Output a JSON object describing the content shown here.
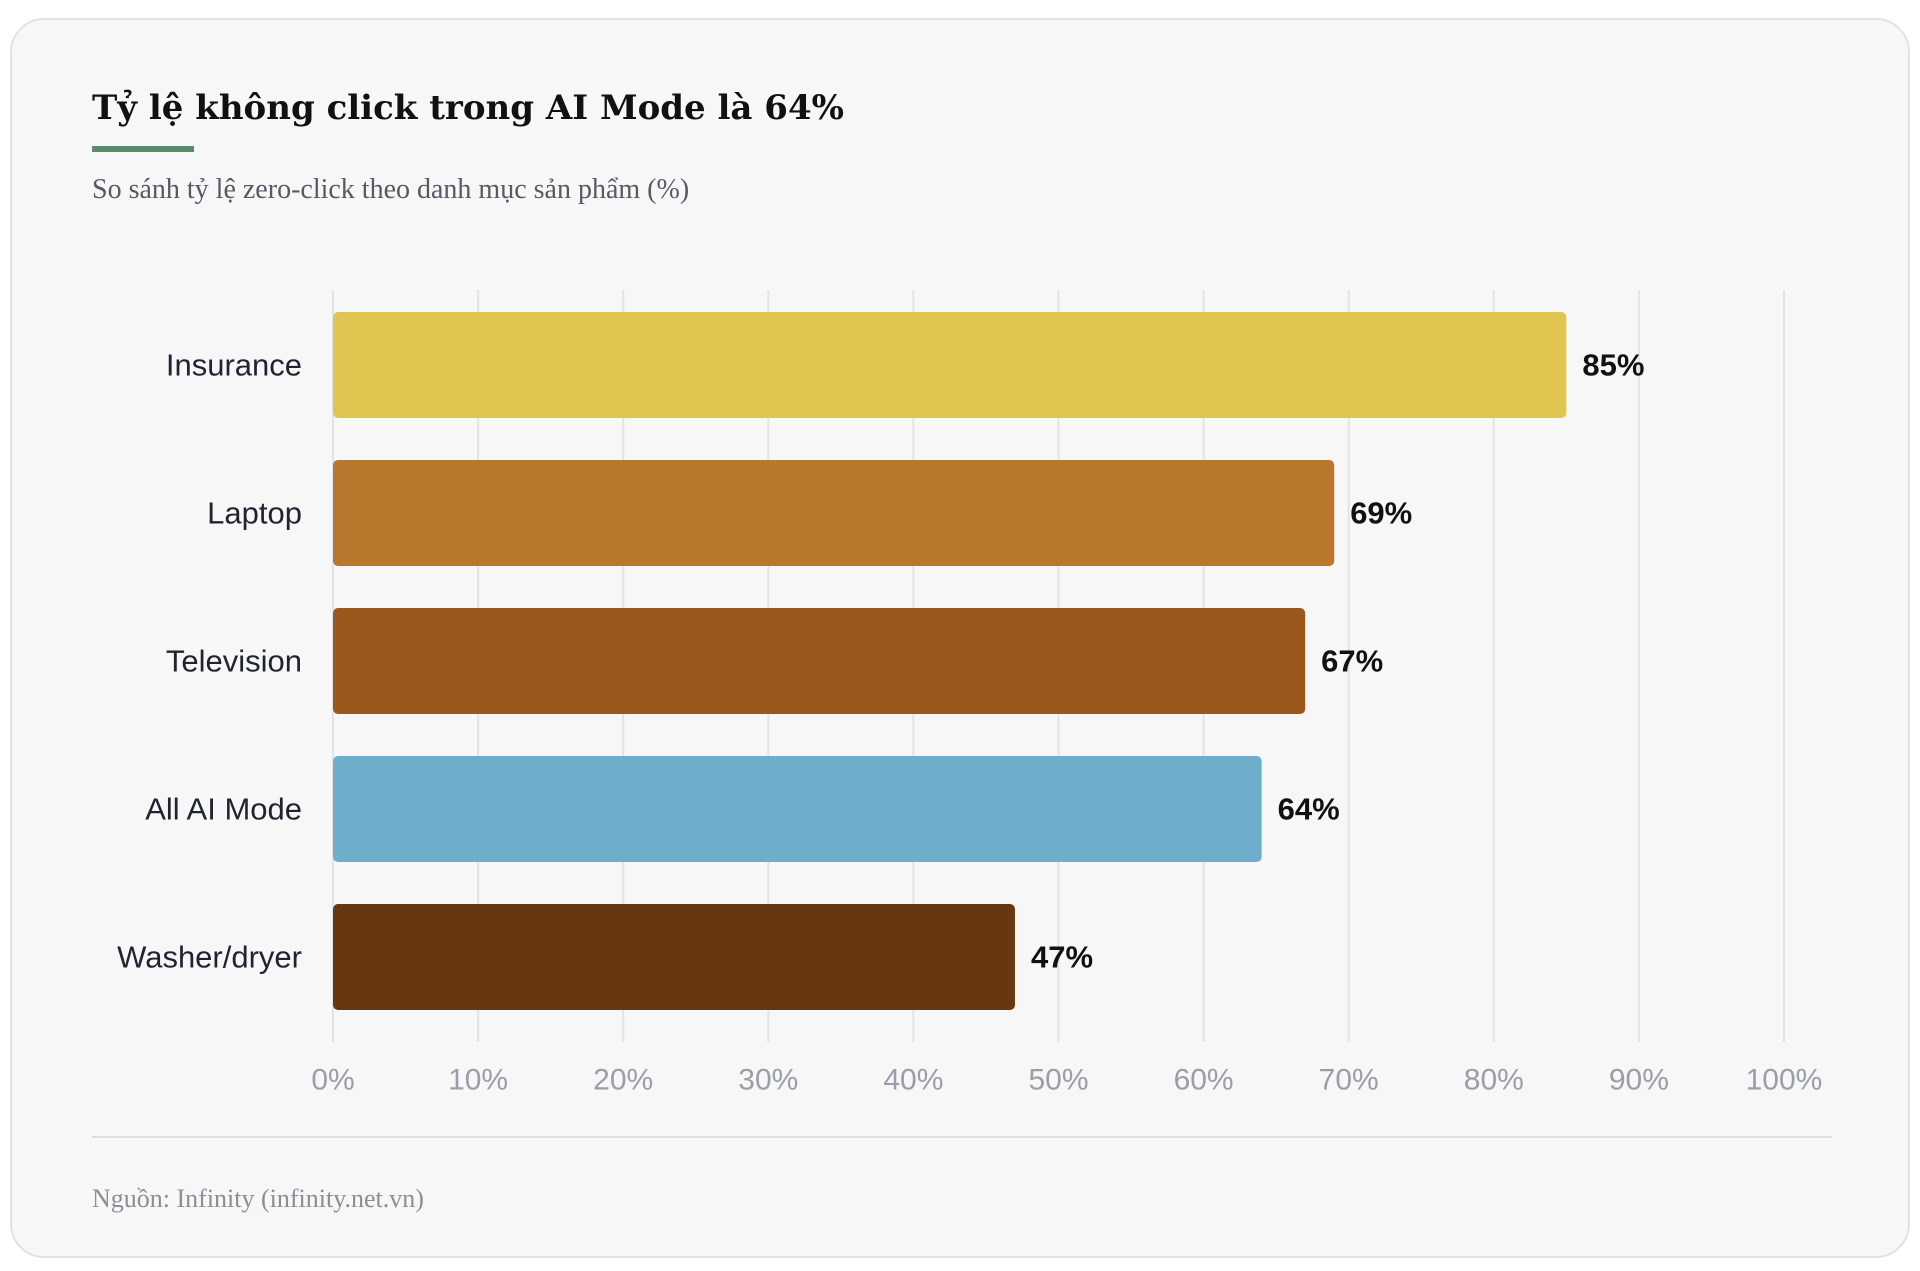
{
  "header": {
    "title": "Tỷ lệ không click trong AI Mode là 64%",
    "subtitle": "So sánh tỷ lệ zero-click theo danh mục sản phẩm (%)"
  },
  "footer": {
    "source": "Nguồn: Infinity (infinity.net.vn)"
  },
  "chart_data": {
    "type": "bar",
    "orientation": "horizontal",
    "title": "Tỷ lệ không click trong AI Mode là 64%",
    "subtitle": "So sánh tỷ lệ zero-click theo danh mục sản phẩm (%)",
    "categories": [
      "Insurance",
      "Laptop",
      "Television",
      "All AI Mode",
      "Washer/dryer"
    ],
    "values": [
      85,
      69,
      67,
      64,
      47
    ],
    "value_labels": [
      "85%",
      "69%",
      "67%",
      "64%",
      "47%"
    ],
    "colors": [
      "#e0c550",
      "#b9772d",
      "#9a581c",
      "#6eaecb",
      "#673711"
    ],
    "xlim": [
      0,
      100
    ],
    "ticks": [
      0,
      10,
      20,
      30,
      40,
      50,
      60,
      70,
      80,
      90,
      100
    ],
    "tick_labels": [
      "0%",
      "10%",
      "20%",
      "30%",
      "40%",
      "50%",
      "60%",
      "70%",
      "80%",
      "90%",
      "100%"
    ],
    "grid": true,
    "legend": false
  }
}
